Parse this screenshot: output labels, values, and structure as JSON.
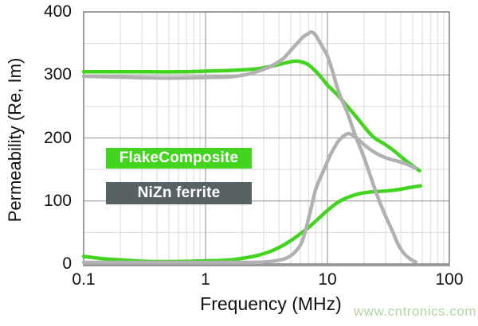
{
  "watermark": {
    "text": "www.cntronics.com",
    "color": "#b3d5a5"
  },
  "chart_data": {
    "type": "line",
    "title": "",
    "xlabel": "Frequency (MHz)",
    "ylabel": "Permeability (Re, Im)",
    "x_scale": "log",
    "xlim": [
      0.1,
      100
    ],
    "ylim": [
      0,
      400
    ],
    "grid": true,
    "xticks": {
      "values": [
        0.1,
        1,
        10,
        100
      ],
      "labels": [
        "0.1",
        "1",
        "10",
        "100"
      ]
    },
    "yticks": {
      "values": [
        0,
        100,
        200,
        300,
        400
      ],
      "labels": [
        "0",
        "100",
        "200",
        "300",
        "400"
      ],
      "minor_step": 50
    },
    "colors": {
      "flake_green": "#42d41e",
      "nizn_gray_box": "#586264",
      "curve_gray": "#b1b1b1",
      "grid_minor": "#dadada",
      "grid_major": "#a7a7a7",
      "border": "#7f7f7f"
    },
    "legend": [
      {
        "label": "FlakeComposite",
        "box_color": "#42d41e",
        "text_color": "#ffffff"
      },
      {
        "label": "NiZn ferrite",
        "box_color": "#586264",
        "text_color": "#ffffff"
      }
    ],
    "series": [
      {
        "name": "FlakeComposite Re",
        "color": "#42d41e",
        "points": [
          [
            0.1,
            305
          ],
          [
            0.2,
            305
          ],
          [
            0.35,
            305
          ],
          [
            0.6,
            305
          ],
          [
            1,
            306
          ],
          [
            1.5,
            307
          ],
          [
            2,
            308
          ],
          [
            2.7,
            310
          ],
          [
            3.5,
            314
          ],
          [
            4.3,
            318
          ],
          [
            5,
            321
          ],
          [
            5.6,
            322
          ],
          [
            6.3,
            320
          ],
          [
            7,
            316
          ],
          [
            8,
            306
          ],
          [
            9,
            295
          ],
          [
            10,
            284
          ],
          [
            12,
            269
          ],
          [
            14,
            254
          ],
          [
            17,
            235
          ],
          [
            20,
            218
          ],
          [
            24,
            201
          ],
          [
            29,
            191
          ],
          [
            35,
            180
          ],
          [
            42,
            167
          ],
          [
            50,
            156
          ],
          [
            57,
            148
          ]
        ]
      },
      {
        "name": "FlakeComposite Im",
        "color": "#42d41e",
        "points": [
          [
            0.1,
            12
          ],
          [
            0.15,
            8
          ],
          [
            0.22,
            6
          ],
          [
            0.35,
            4
          ],
          [
            0.6,
            4
          ],
          [
            1,
            5
          ],
          [
            1.5,
            6
          ],
          [
            2,
            9
          ],
          [
            2.6,
            13
          ],
          [
            3.3,
            19
          ],
          [
            4,
            26
          ],
          [
            5,
            37
          ],
          [
            6,
            48
          ],
          [
            7,
            58
          ],
          [
            8,
            68
          ],
          [
            9,
            77
          ],
          [
            10,
            85
          ],
          [
            12,
            97
          ],
          [
            14,
            104
          ],
          [
            17,
            110
          ],
          [
            20,
            113
          ],
          [
            25,
            115
          ],
          [
            31,
            116
          ],
          [
            38,
            118
          ],
          [
            46,
            121
          ],
          [
            58,
            124
          ]
        ]
      },
      {
        "name": "NiZn ferrite Re",
        "color": "#b1b1b1",
        "points": [
          [
            0.1,
            298
          ],
          [
            0.25,
            296
          ],
          [
            0.5,
            295
          ],
          [
            1,
            296
          ],
          [
            1.6,
            297
          ],
          [
            2.2,
            301
          ],
          [
            3,
            309
          ],
          [
            3.7,
            317
          ],
          [
            4.4,
            327
          ],
          [
            5,
            339
          ],
          [
            5.7,
            351
          ],
          [
            6.3,
            360
          ],
          [
            7,
            366
          ],
          [
            7.4,
            368
          ],
          [
            8,
            363
          ],
          [
            9,
            346
          ],
          [
            10,
            330
          ],
          [
            11,
            306
          ],
          [
            12,
            281
          ],
          [
            13,
            262
          ],
          [
            14.5,
            241
          ],
          [
            17,
            203
          ],
          [
            19,
            180
          ],
          [
            21,
            157
          ],
          [
            24,
            124
          ],
          [
            27,
            97
          ],
          [
            30,
            76
          ],
          [
            34,
            53
          ],
          [
            38,
            31
          ],
          [
            42,
            18
          ],
          [
            47,
            9
          ],
          [
            53,
            3
          ]
        ]
      },
      {
        "name": "NiZn ferrite Im",
        "color": "#b1b1b1",
        "points": [
          [
            0.1,
            2
          ],
          [
            0.5,
            2
          ],
          [
            1,
            2
          ],
          [
            2,
            2
          ],
          [
            3,
            3
          ],
          [
            4,
            6
          ],
          [
            4.7,
            10
          ],
          [
            5.3,
            17
          ],
          [
            6,
            30
          ],
          [
            6.5,
            48
          ],
          [
            7,
            72
          ],
          [
            7.5,
            96
          ],
          [
            8,
            118
          ],
          [
            8.7,
            136
          ],
          [
            9.5,
            152
          ],
          [
            10.5,
            172
          ],
          [
            12,
            192
          ],
          [
            13,
            200
          ],
          [
            14,
            205
          ],
          [
            15,
            207
          ],
          [
            16.5,
            203
          ],
          [
            18,
            197
          ],
          [
            21,
            186
          ],
          [
            24,
            178
          ],
          [
            28,
            171
          ],
          [
            33,
            166
          ],
          [
            38,
            163
          ],
          [
            44,
            159
          ],
          [
            49,
            155
          ],
          [
            53,
            152
          ]
        ]
      }
    ]
  }
}
